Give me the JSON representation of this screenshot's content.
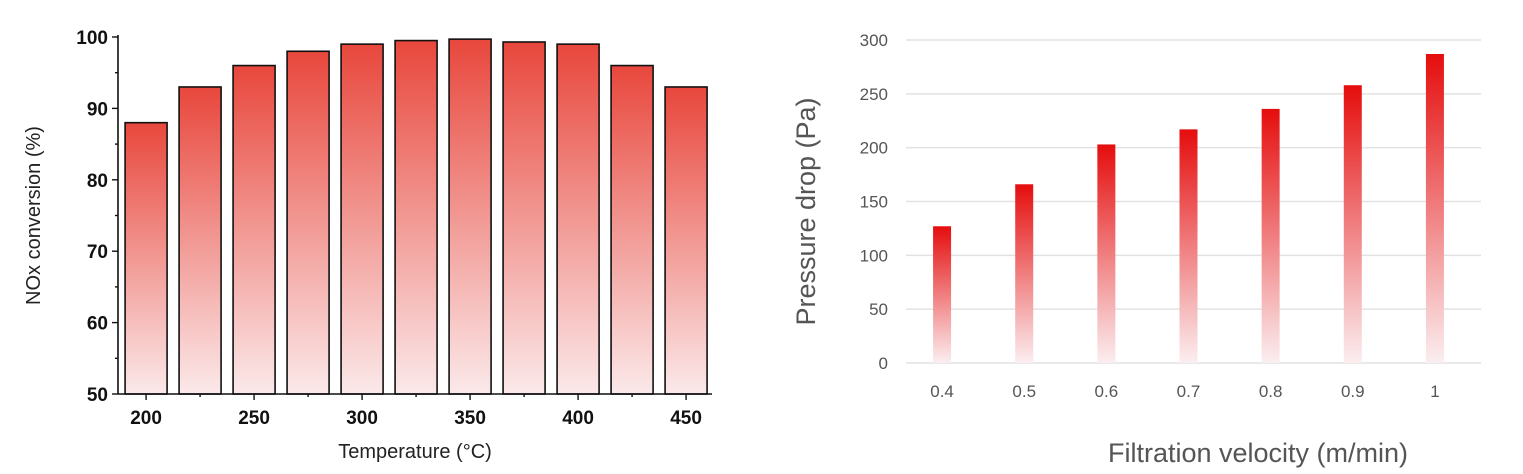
{
  "chart_data": [
    {
      "type": "bar",
      "title": "",
      "xlabel": "Temperature (°C)",
      "ylabel": "NOx conversion (%)",
      "x": [
        200,
        225,
        250,
        275,
        300,
        325,
        350,
        375,
        400,
        425,
        450
      ],
      "values": [
        88,
        93,
        96,
        98,
        99,
        99.5,
        99.7,
        99.3,
        99,
        96,
        93
      ],
      "xticks": [
        "200",
        "250",
        "300",
        "350",
        "400",
        "450"
      ],
      "yticks": [
        "50",
        "60",
        "70",
        "80",
        "90",
        "100"
      ],
      "xlim": [
        187,
        462
      ],
      "ylim": [
        50,
        100
      ],
      "grid": false,
      "bar_gradient": [
        "#e8473c",
        "#fbe9ea"
      ],
      "bar_edge_color": "#111111"
    },
    {
      "type": "bar",
      "title": "",
      "xlabel": "Filtration velocity (m/min)",
      "ylabel": "Pressure drop (Pa)",
      "categories": [
        "0.4",
        "0.5",
        "0.6",
        "0.7",
        "0.8",
        "0.9",
        "1"
      ],
      "values": [
        127,
        166,
        203,
        217,
        236,
        258,
        287
      ],
      "yticks": [
        "0",
        "50",
        "100",
        "150",
        "200",
        "250",
        "300"
      ],
      "ylim": [
        0,
        300
      ],
      "grid": true,
      "bar_gradient": [
        "#e50d0d",
        "#fbeef0"
      ]
    }
  ]
}
